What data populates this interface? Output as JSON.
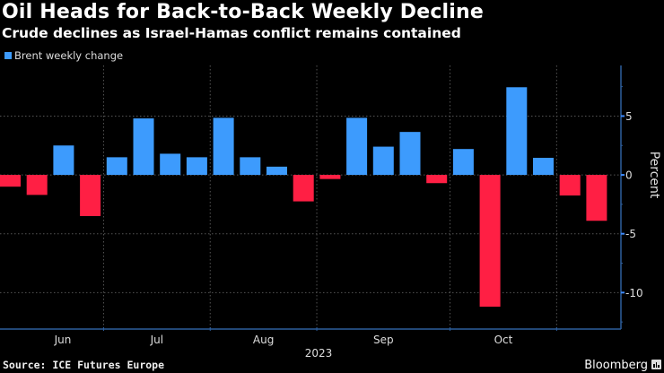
{
  "header": {
    "title": "Oil Heads for Back-to-Back Weekly Decline",
    "subtitle": "Crude declines as Israel-Hamas conflict remains contained"
  },
  "footer": {
    "source": "Source: ICE Futures Europe",
    "brand": "Bloomberg"
  },
  "colors": {
    "positive": "#3d9bfd",
    "negative": "#ff1f44",
    "axis": "#2e5f9e",
    "grid": "#555555",
    "background": "#000000"
  },
  "chart_data": {
    "type": "bar",
    "title": "Oil Heads for Back-to-Back Weekly Decline",
    "subtitle": "Crude declines as Israel-Hamas conflict remains contained",
    "legend": [
      "Brent weekly change"
    ],
    "legend_position": "top-left",
    "xlabel": "2023",
    "ylabel": "Percent",
    "y_axis_side": "right",
    "ylim": [
      -13.1,
      9.3
    ],
    "yticks": [
      5,
      0,
      -5,
      -10
    ],
    "ytick_labels": [
      "5",
      "0",
      "-5",
      "-10"
    ],
    "grid": true,
    "month_labels": [
      "Jun",
      "Jul",
      "Aug",
      "Sep",
      "Oct"
    ],
    "month_start_week_index": [
      4,
      8,
      12,
      17,
      21
    ],
    "year_label": "2023",
    "series": [
      {
        "name": "Brent weekly change",
        "values": [
          -1.0,
          -1.7,
          2.5,
          -3.5,
          1.5,
          4.8,
          1.8,
          1.5,
          4.85,
          1.5,
          0.7,
          -2.25,
          -0.35,
          4.85,
          2.4,
          3.65,
          -0.7,
          2.2,
          -11.2,
          7.45,
          1.45,
          -1.75,
          -3.9
        ]
      }
    ]
  }
}
